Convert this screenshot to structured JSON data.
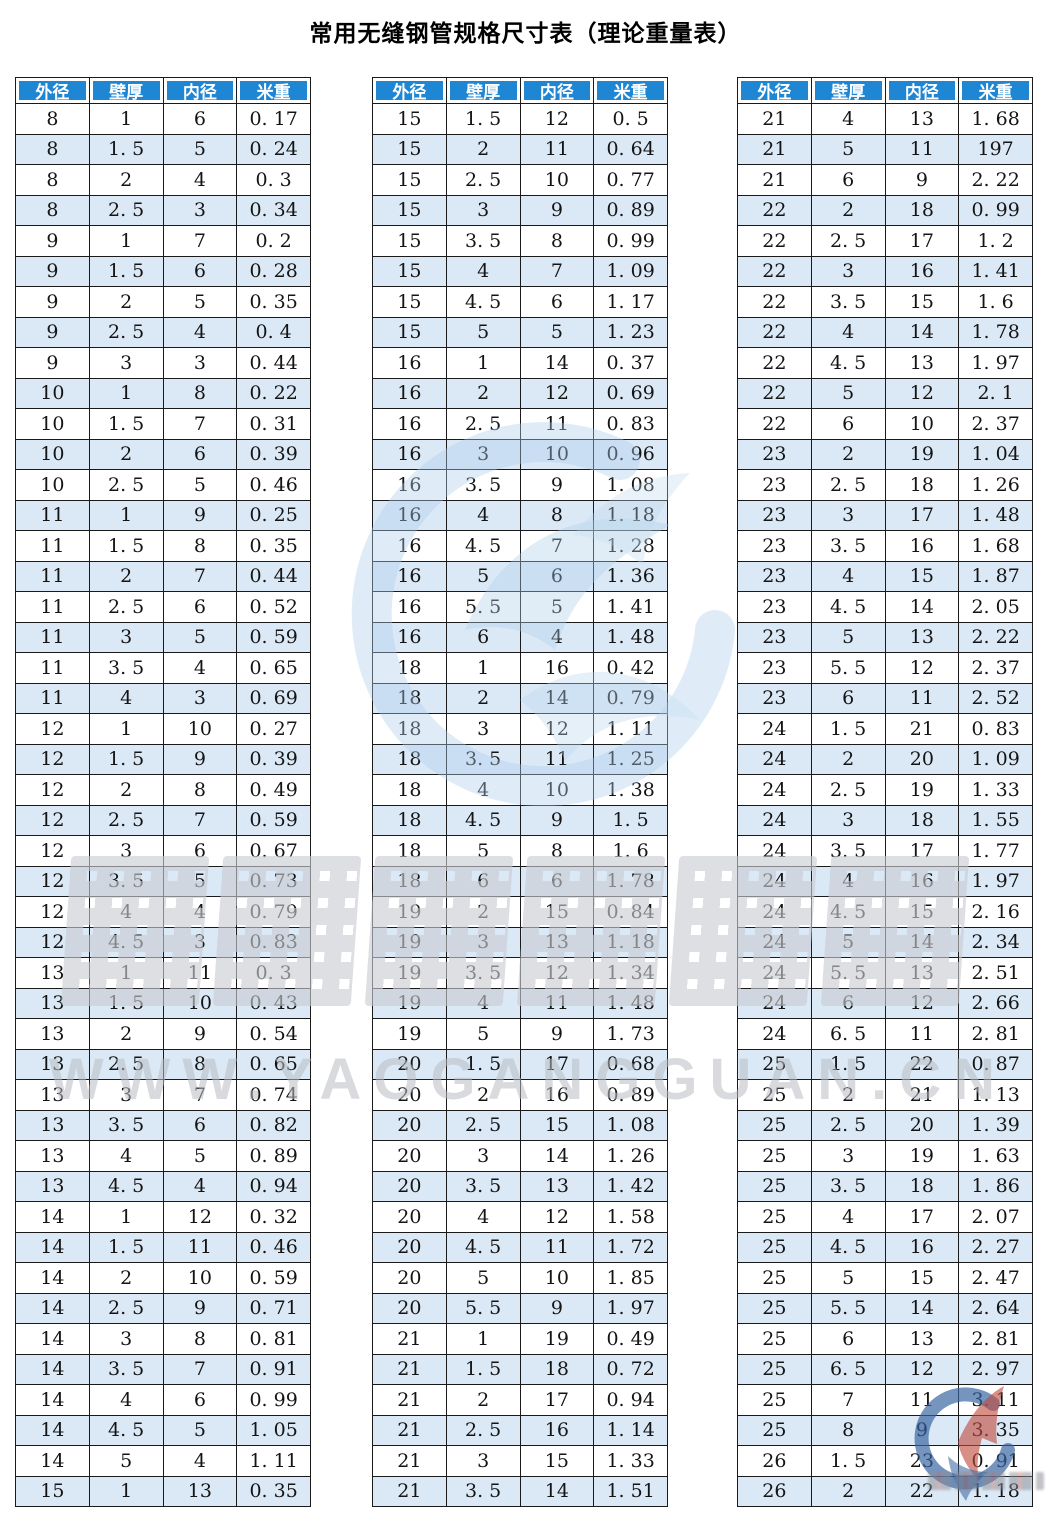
{
  "title": "常用无缝钢管规格尺寸表（理论重量表）",
  "watermark": {
    "url_text": "WWW.YAOGANGGUAN.CN"
  },
  "colors": {
    "header_bg": "#1e86d2",
    "row_stripe": "#dbe9f6",
    "grid_border": "#1a1a1a",
    "center_logo_blue": "#aecfec",
    "corner_logo_blue": "#33619f",
    "corner_logo_red": "#c04a3c"
  },
  "column_keys": [
    "outer-diameter",
    "wall-thickness",
    "inner-diameter",
    "weight-per-meter"
  ],
  "tables": [
    {
      "headers": [
        "外径",
        "壁厚",
        "内径",
        "米重"
      ],
      "rows": [
        [
          "8",
          "1",
          "6",
          "0. 17"
        ],
        [
          "8",
          "1. 5",
          "5",
          "0. 24"
        ],
        [
          "8",
          "2",
          "4",
          "0. 3"
        ],
        [
          "8",
          "2. 5",
          "3",
          "0. 34"
        ],
        [
          "9",
          "1",
          "7",
          "0. 2"
        ],
        [
          "9",
          "1. 5",
          "6",
          "0. 28"
        ],
        [
          "9",
          "2",
          "5",
          "0. 35"
        ],
        [
          "9",
          "2. 5",
          "4",
          "0. 4"
        ],
        [
          "9",
          "3",
          "3",
          "0. 44"
        ],
        [
          "10",
          "1",
          "8",
          "0. 22"
        ],
        [
          "10",
          "1. 5",
          "7",
          "0. 31"
        ],
        [
          "10",
          "2",
          "6",
          "0. 39"
        ],
        [
          "10",
          "2. 5",
          "5",
          "0. 46"
        ],
        [
          "11",
          "1",
          "9",
          "0. 25"
        ],
        [
          "11",
          "1. 5",
          "8",
          "0. 35"
        ],
        [
          "11",
          "2",
          "7",
          "0. 44"
        ],
        [
          "11",
          "2. 5",
          "6",
          "0. 52"
        ],
        [
          "11",
          "3",
          "5",
          "0. 59"
        ],
        [
          "11",
          "3. 5",
          "4",
          "0. 65"
        ],
        [
          "11",
          "4",
          "3",
          "0. 69"
        ],
        [
          "12",
          "1",
          "10",
          "0. 27"
        ],
        [
          "12",
          "1. 5",
          "9",
          "0. 39"
        ],
        [
          "12",
          "2",
          "8",
          "0. 49"
        ],
        [
          "12",
          "2. 5",
          "7",
          "0. 59"
        ],
        [
          "12",
          "3",
          "6",
          "0. 67"
        ],
        [
          "12",
          "3. 5",
          "5",
          "0. 73"
        ],
        [
          "12",
          "4",
          "4",
          "0. 79"
        ],
        [
          "12",
          "4. 5",
          "3",
          "0. 83"
        ],
        [
          "13",
          "1",
          "11",
          "0. 3"
        ],
        [
          "13",
          "1. 5",
          "10",
          "0. 43"
        ],
        [
          "13",
          "2",
          "9",
          "0. 54"
        ],
        [
          "13",
          "2. 5",
          "8",
          "0. 65"
        ],
        [
          "13",
          "3",
          "7",
          "0. 74"
        ],
        [
          "13",
          "3. 5",
          "6",
          "0. 82"
        ],
        [
          "13",
          "4",
          "5",
          "0. 89"
        ],
        [
          "13",
          "4. 5",
          "4",
          "0. 94"
        ],
        [
          "14",
          "1",
          "12",
          "0. 32"
        ],
        [
          "14",
          "1. 5",
          "11",
          "0. 46"
        ],
        [
          "14",
          "2",
          "10",
          "0. 59"
        ],
        [
          "14",
          "2. 5",
          "9",
          "0. 71"
        ],
        [
          "14",
          "3",
          "8",
          "0. 81"
        ],
        [
          "14",
          "3. 5",
          "7",
          "0. 91"
        ],
        [
          "14",
          "4",
          "6",
          "0. 99"
        ],
        [
          "14",
          "4. 5",
          "5",
          "1. 05"
        ],
        [
          "14",
          "5",
          "4",
          "1. 11"
        ],
        [
          "15",
          "1",
          "13",
          "0. 35"
        ]
      ]
    },
    {
      "headers": [
        "外径",
        "壁厚",
        "内径",
        "米重"
      ],
      "rows": [
        [
          "15",
          "1. 5",
          "12",
          "0. 5"
        ],
        [
          "15",
          "2",
          "11",
          "0. 64"
        ],
        [
          "15",
          "2. 5",
          "10",
          "0. 77"
        ],
        [
          "15",
          "3",
          "9",
          "0. 89"
        ],
        [
          "15",
          "3. 5",
          "8",
          "0. 99"
        ],
        [
          "15",
          "4",
          "7",
          "1. 09"
        ],
        [
          "15",
          "4. 5",
          "6",
          "1. 17"
        ],
        [
          "15",
          "5",
          "5",
          "1. 23"
        ],
        [
          "16",
          "1",
          "14",
          "0. 37"
        ],
        [
          "16",
          "2",
          "12",
          "0. 69"
        ],
        [
          "16",
          "2. 5",
          "11",
          "0. 83"
        ],
        [
          "16",
          "3",
          "10",
          "0. 96"
        ],
        [
          "16",
          "3. 5",
          "9",
          "1. 08"
        ],
        [
          "16",
          "4",
          "8",
          "1. 18"
        ],
        [
          "16",
          "4. 5",
          "7",
          "1. 28"
        ],
        [
          "16",
          "5",
          "6",
          "1. 36"
        ],
        [
          "16",
          "5. 5",
          "5",
          "1. 41"
        ],
        [
          "16",
          "6",
          "4",
          "1. 48"
        ],
        [
          "18",
          "1",
          "16",
          "0. 42"
        ],
        [
          "18",
          "2",
          "14",
          "0. 79"
        ],
        [
          "18",
          "3",
          "12",
          "1. 11"
        ],
        [
          "18",
          "3. 5",
          "11",
          "1. 25"
        ],
        [
          "18",
          "4",
          "10",
          "1. 38"
        ],
        [
          "18",
          "4. 5",
          "9",
          "1. 5"
        ],
        [
          "18",
          "5",
          "8",
          "1. 6"
        ],
        [
          "18",
          "6",
          "6",
          "1. 78"
        ],
        [
          "19",
          "2",
          "15",
          "0. 84"
        ],
        [
          "19",
          "3",
          "13",
          "1. 18"
        ],
        [
          "19",
          "3. 5",
          "12",
          "1. 34"
        ],
        [
          "19",
          "4",
          "11",
          "1. 48"
        ],
        [
          "19",
          "5",
          "9",
          "1. 73"
        ],
        [
          "20",
          "1. 5",
          "17",
          "0. 68"
        ],
        [
          "20",
          "2",
          "16",
          "0. 89"
        ],
        [
          "20",
          "2. 5",
          "15",
          "1. 08"
        ],
        [
          "20",
          "3",
          "14",
          "1. 26"
        ],
        [
          "20",
          "3. 5",
          "13",
          "1. 42"
        ],
        [
          "20",
          "4",
          "12",
          "1. 58"
        ],
        [
          "20",
          "4. 5",
          "11",
          "1. 72"
        ],
        [
          "20",
          "5",
          "10",
          "1. 85"
        ],
        [
          "20",
          "5. 5",
          "9",
          "1. 97"
        ],
        [
          "21",
          "1",
          "19",
          "0. 49"
        ],
        [
          "21",
          "1. 5",
          "18",
          "0. 72"
        ],
        [
          "21",
          "2",
          "17",
          "0. 94"
        ],
        [
          "21",
          "2. 5",
          "16",
          "1. 14"
        ],
        [
          "21",
          "3",
          "15",
          "1. 33"
        ],
        [
          "21",
          "3. 5",
          "14",
          "1. 51"
        ]
      ]
    },
    {
      "headers": [
        "外径",
        "壁厚",
        "内径",
        "米重"
      ],
      "rows": [
        [
          "21",
          "4",
          "13",
          "1. 68"
        ],
        [
          "21",
          "5",
          "11",
          "197"
        ],
        [
          "21",
          "6",
          "9",
          "2. 22"
        ],
        [
          "22",
          "2",
          "18",
          "0. 99"
        ],
        [
          "22",
          "2. 5",
          "17",
          "1. 2"
        ],
        [
          "22",
          "3",
          "16",
          "1. 41"
        ],
        [
          "22",
          "3. 5",
          "15",
          "1. 6"
        ],
        [
          "22",
          "4",
          "14",
          "1. 78"
        ],
        [
          "22",
          "4. 5",
          "13",
          "1. 97"
        ],
        [
          "22",
          "5",
          "12",
          "2. 1"
        ],
        [
          "22",
          "6",
          "10",
          "2. 37"
        ],
        [
          "23",
          "2",
          "19",
          "1. 04"
        ],
        [
          "23",
          "2. 5",
          "18",
          "1. 26"
        ],
        [
          "23",
          "3",
          "17",
          "1. 48"
        ],
        [
          "23",
          "3. 5",
          "16",
          "1. 68"
        ],
        [
          "23",
          "4",
          "15",
          "1. 87"
        ],
        [
          "23",
          "4. 5",
          "14",
          "2. 05"
        ],
        [
          "23",
          "5",
          "13",
          "2. 22"
        ],
        [
          "23",
          "5. 5",
          "12",
          "2. 37"
        ],
        [
          "23",
          "6",
          "11",
          "2. 52"
        ],
        [
          "24",
          "1. 5",
          "21",
          "0. 83"
        ],
        [
          "24",
          "2",
          "20",
          "1. 09"
        ],
        [
          "24",
          "2. 5",
          "19",
          "1. 33"
        ],
        [
          "24",
          "3",
          "18",
          "1. 55"
        ],
        [
          "24",
          "3. 5",
          "17",
          "1. 77"
        ],
        [
          "24",
          "4",
          "16",
          "1. 97"
        ],
        [
          "24",
          "4. 5",
          "15",
          "2. 16"
        ],
        [
          "24",
          "5",
          "14",
          "2. 34"
        ],
        [
          "24",
          "5. 5",
          "13",
          "2. 51"
        ],
        [
          "24",
          "6",
          "12",
          "2. 66"
        ],
        [
          "24",
          "6. 5",
          "11",
          "2. 81"
        ],
        [
          "25",
          "1. 5",
          "22",
          "0. 87"
        ],
        [
          "25",
          "2",
          "21",
          "1. 13"
        ],
        [
          "25",
          "2. 5",
          "20",
          "1. 39"
        ],
        [
          "25",
          "3",
          "19",
          "1. 63"
        ],
        [
          "25",
          "3. 5",
          "18",
          "1. 86"
        ],
        [
          "25",
          "4",
          "17",
          "2. 07"
        ],
        [
          "25",
          "4. 5",
          "16",
          "2. 27"
        ],
        [
          "25",
          "5",
          "15",
          "2. 47"
        ],
        [
          "25",
          "5. 5",
          "14",
          "2. 64"
        ],
        [
          "25",
          "6",
          "13",
          "2. 81"
        ],
        [
          "25",
          "6. 5",
          "12",
          "2. 97"
        ],
        [
          "25",
          "7",
          "11",
          "3. 11"
        ],
        [
          "25",
          "8",
          "9",
          "3. 35"
        ],
        [
          "26",
          "1. 5",
          "23",
          "0. 91"
        ],
        [
          "26",
          "2",
          "22",
          "1. 18"
        ]
      ]
    }
  ]
}
